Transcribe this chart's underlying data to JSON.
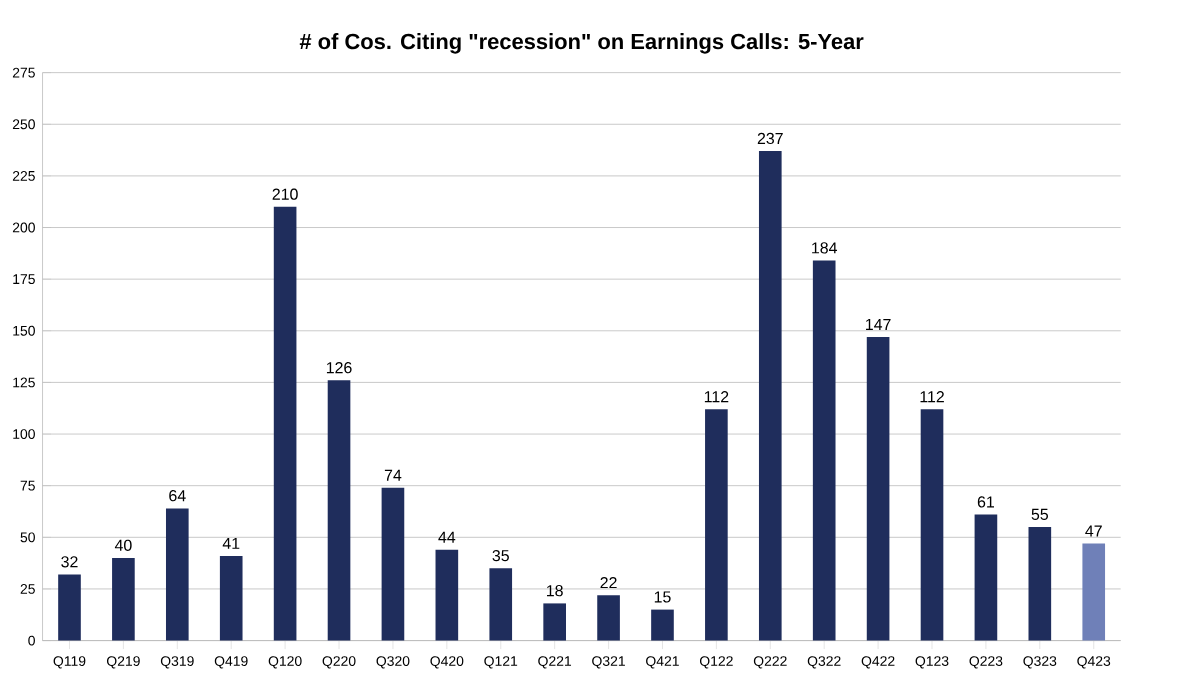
{
  "chart_data": {
    "type": "bar",
    "title": "# of Cos. Citing \"recession\" on Earnings Calls: 5-Year",
    "categories": [
      "Q119",
      "Q219",
      "Q319",
      "Q419",
      "Q120",
      "Q220",
      "Q320",
      "Q420",
      "Q121",
      "Q221",
      "Q321",
      "Q421",
      "Q122",
      "Q222",
      "Q322",
      "Q422",
      "Q123",
      "Q223",
      "Q323",
      "Q423"
    ],
    "values": [
      32,
      40,
      64,
      41,
      210,
      126,
      74,
      44,
      35,
      18,
      22,
      15,
      112,
      237,
      184,
      147,
      112,
      61,
      55,
      47
    ],
    "colors": [
      "#1f2d5c",
      "#1f2d5c",
      "#1f2d5c",
      "#1f2d5c",
      "#1f2d5c",
      "#1f2d5c",
      "#1f2d5c",
      "#1f2d5c",
      "#1f2d5c",
      "#1f2d5c",
      "#1f2d5c",
      "#1f2d5c",
      "#1f2d5c",
      "#1f2d5c",
      "#1f2d5c",
      "#1f2d5c",
      "#1f2d5c",
      "#1f2d5c",
      "#1f2d5c",
      "#6f80b8"
    ],
    "ylim": [
      0,
      275
    ],
    "yticks": [
      0,
      25,
      50,
      75,
      100,
      125,
      150,
      175,
      200,
      225,
      250,
      275
    ],
    "grid": "y",
    "data_labels": true
  }
}
